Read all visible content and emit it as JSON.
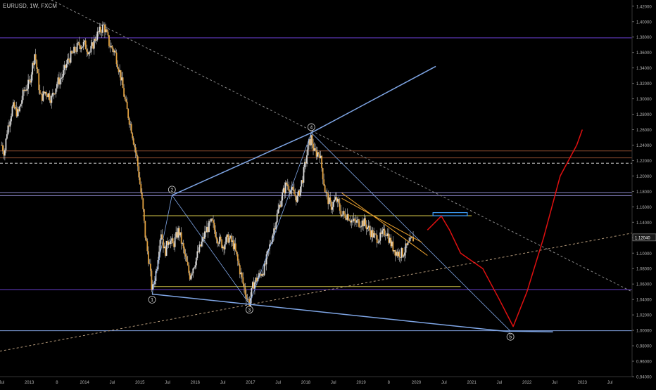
{
  "header": {
    "title": "EURUSD, 1W, FXCM"
  },
  "chart_data": {
    "type": "line",
    "symbol": "EURUSD",
    "timeframe": "1W",
    "source": "FXCM",
    "ylim": [
      0.94,
      1.428
    ],
    "y_ticks": [
      "1.42000",
      "1.40000",
      "1.38000",
      "1.36000",
      "1.34000",
      "1.32000",
      "1.30000",
      "1.28000",
      "1.26000",
      "1.24000",
      "1.22000",
      "1.20000",
      "1.18000",
      "1.16000",
      "1.14000",
      "1.12000",
      "1.10000",
      "1.08000",
      "1.06000",
      "1.04000",
      "1.02000",
      "1.00000",
      "0.98000",
      "0.96000",
      "0.94000"
    ],
    "x_ticks": [
      "Jul",
      "2013",
      "8",
      "2014",
      "Jul",
      "2015",
      "Jul",
      "2016",
      "Jul",
      "2017",
      "Jul",
      "2018",
      "Jul",
      "2019",
      "8",
      "2020",
      "Jul",
      "2021",
      "Jul",
      "2022",
      "Jul",
      "2023",
      "Jul"
    ],
    "x_tick_times": [
      2012.5,
      2013.0,
      2013.5,
      2014.0,
      2014.5,
      2015.0,
      2015.5,
      2016.0,
      2016.5,
      2017.0,
      2017.5,
      2018.0,
      2018.5,
      2019.0,
      2019.5,
      2020.0,
      2020.5,
      2021.0,
      2021.5,
      2022.0,
      2022.5,
      2023.0,
      2023.5
    ],
    "xlim": [
      2012.47,
      2023.9
    ],
    "price_label": "1.12040",
    "current_price": 1.1204,
    "price_path": [
      [
        2012.5,
        1.24
      ],
      [
        2012.55,
        1.23
      ],
      [
        2012.6,
        1.26
      ],
      [
        2012.7,
        1.29
      ],
      [
        2012.8,
        1.28
      ],
      [
        2012.9,
        1.31
      ],
      [
        2013.0,
        1.32
      ],
      [
        2013.1,
        1.36
      ],
      [
        2013.2,
        1.3
      ],
      [
        2013.3,
        1.31
      ],
      [
        2013.4,
        1.3
      ],
      [
        2013.5,
        1.32
      ],
      [
        2013.6,
        1.33
      ],
      [
        2013.7,
        1.35
      ],
      [
        2013.8,
        1.36
      ],
      [
        2013.9,
        1.37
      ],
      [
        2014.0,
        1.37
      ],
      [
        2014.1,
        1.36
      ],
      [
        2014.2,
        1.38
      ],
      [
        2014.3,
        1.39
      ],
      [
        2014.35,
        1.395
      ],
      [
        2014.45,
        1.37
      ],
      [
        2014.55,
        1.36
      ],
      [
        2014.65,
        1.33
      ],
      [
        2014.75,
        1.29
      ],
      [
        2014.85,
        1.26
      ],
      [
        2014.95,
        1.22
      ],
      [
        2015.05,
        1.16
      ],
      [
        2015.1,
        1.12
      ],
      [
        2015.18,
        1.08
      ],
      [
        2015.22,
        1.05
      ],
      [
        2015.3,
        1.08
      ],
      [
        2015.38,
        1.13
      ],
      [
        2015.45,
        1.1
      ],
      [
        2015.52,
        1.12
      ],
      [
        2015.6,
        1.11
      ],
      [
        2015.7,
        1.13
      ],
      [
        2015.8,
        1.1
      ],
      [
        2015.9,
        1.07
      ],
      [
        2016.0,
        1.09
      ],
      [
        2016.1,
        1.11
      ],
      [
        2016.2,
        1.13
      ],
      [
        2016.3,
        1.14
      ],
      [
        2016.4,
        1.12
      ],
      [
        2016.5,
        1.11
      ],
      [
        2016.6,
        1.12
      ],
      [
        2016.7,
        1.11
      ],
      [
        2016.8,
        1.08
      ],
      [
        2016.9,
        1.05
      ],
      [
        2016.98,
        1.035
      ],
      [
        2017.05,
        1.06
      ],
      [
        2017.15,
        1.07
      ],
      [
        2017.25,
        1.08
      ],
      [
        2017.35,
        1.11
      ],
      [
        2017.45,
        1.14
      ],
      [
        2017.55,
        1.17
      ],
      [
        2017.65,
        1.19
      ],
      [
        2017.75,
        1.18
      ],
      [
        2017.85,
        1.17
      ],
      [
        2017.95,
        1.2
      ],
      [
        2018.05,
        1.24
      ],
      [
        2018.1,
        1.25
      ],
      [
        2018.15,
        1.23
      ],
      [
        2018.25,
        1.23
      ],
      [
        2018.35,
        1.18
      ],
      [
        2018.45,
        1.16
      ],
      [
        2018.55,
        1.17
      ],
      [
        2018.65,
        1.15
      ],
      [
        2018.75,
        1.15
      ],
      [
        2018.85,
        1.14
      ],
      [
        2018.95,
        1.14
      ],
      [
        2019.05,
        1.14
      ],
      [
        2019.15,
        1.13
      ],
      [
        2019.25,
        1.12
      ],
      [
        2019.35,
        1.12
      ],
      [
        2019.45,
        1.13
      ],
      [
        2019.55,
        1.11
      ],
      [
        2019.65,
        1.1
      ],
      [
        2019.75,
        1.1
      ],
      [
        2019.85,
        1.11
      ],
      [
        2019.95,
        1.12
      ]
    ],
    "projection_path": [
      [
        2020.2,
        1.13
      ],
      [
        2020.45,
        1.148
      ],
      [
        2020.6,
        1.13
      ],
      [
        2020.8,
        1.1
      ],
      [
        2021.2,
        1.08
      ],
      [
        2021.5,
        1.04
      ],
      [
        2021.75,
        1.005
      ],
      [
        2022.0,
        1.05
      ],
      [
        2022.3,
        1.12
      ],
      [
        2022.6,
        1.2
      ],
      [
        2022.9,
        1.24
      ],
      [
        2023.0,
        1.26
      ]
    ],
    "horizontal_levels": [
      {
        "price": 1.379,
        "color": "#6a3fd0",
        "style": "solid"
      },
      {
        "price": 1.2235,
        "color": "#8a4a2e",
        "style": "solid"
      },
      {
        "price": 1.2325,
        "color": "#8a4a2e",
        "style": "solid"
      },
      {
        "price": 1.2165,
        "color": "#d8d8d8",
        "style": "dashed"
      },
      {
        "price": 1.1785,
        "color": "#8a86c8",
        "style": "solid"
      },
      {
        "price": 1.1745,
        "color": "#8a86c8",
        "style": "solid"
      },
      {
        "price": 1.0525,
        "color": "#6a3fd0",
        "style": "solid"
      },
      {
        "price": 0.9995,
        "color": "#7f9fdc",
        "style": "solid"
      }
    ],
    "yellow_levels": [
      {
        "price": 1.1485,
        "x0": 2015.05,
        "x1": 2021.0
      },
      {
        "price": 1.0568,
        "x0": 2015.25,
        "x1": 2020.8
      }
    ],
    "wave_labels": [
      "1",
      "2",
      "3",
      "4",
      "5"
    ],
    "wave_points": [
      [
        2015.22,
        1.047
      ],
      [
        2015.58,
        1.175
      ],
      [
        2016.98,
        1.034
      ],
      [
        2018.1,
        1.256
      ],
      [
        2021.7,
        0.999
      ]
    ],
    "blue_lines": [
      [
        [
          2015.58,
          1.175
        ],
        [
          2018.1,
          1.256
        ]
      ],
      [
        [
          2018.1,
          1.256
        ],
        [
          2020.35,
          1.342
        ]
      ],
      [
        [
          2015.22,
          1.047
        ],
        [
          2021.7,
          0.998
        ]
      ],
      [
        [
          2015.22,
          1.047
        ],
        [
          2015.58,
          1.175
        ]
      ],
      [
        [
          2015.58,
          1.175
        ],
        [
          2016.98,
          1.034
        ]
      ],
      [
        [
          2016.98,
          1.034
        ],
        [
          2018.1,
          1.256
        ]
      ],
      [
        [
          2018.1,
          1.256
        ],
        [
          2021.7,
          0.999
        ]
      ],
      [
        [
          2021.7,
          0.999
        ],
        [
          2022.47,
          0.998
        ]
      ]
    ],
    "dashed_trend_lines": [
      {
        "from": [
          2013.4,
          1.428
        ],
        "to": [
          2023.9,
          1.05
        ],
        "color": "#8a8a8a"
      },
      {
        "from": [
          2012.47,
          0.973
        ],
        "to": [
          2023.9,
          1.126
        ],
        "color": "#b59a7a"
      }
    ],
    "wedge_lines": [
      {
        "from": [
          2018.65,
          1.178
        ],
        "to": [
          2020.2,
          1.097
        ],
        "color": "#e8a02e"
      },
      {
        "from": [
          2018.65,
          1.171
        ],
        "to": [
          2020.1,
          1.114
        ],
        "color": "#e8a02e"
      }
    ],
    "target_box": {
      "x0": 2020.3,
      "x1": 2020.92,
      "y0": 1.1485,
      "y1": 1.1525,
      "color": "#3fa0ff"
    }
  }
}
